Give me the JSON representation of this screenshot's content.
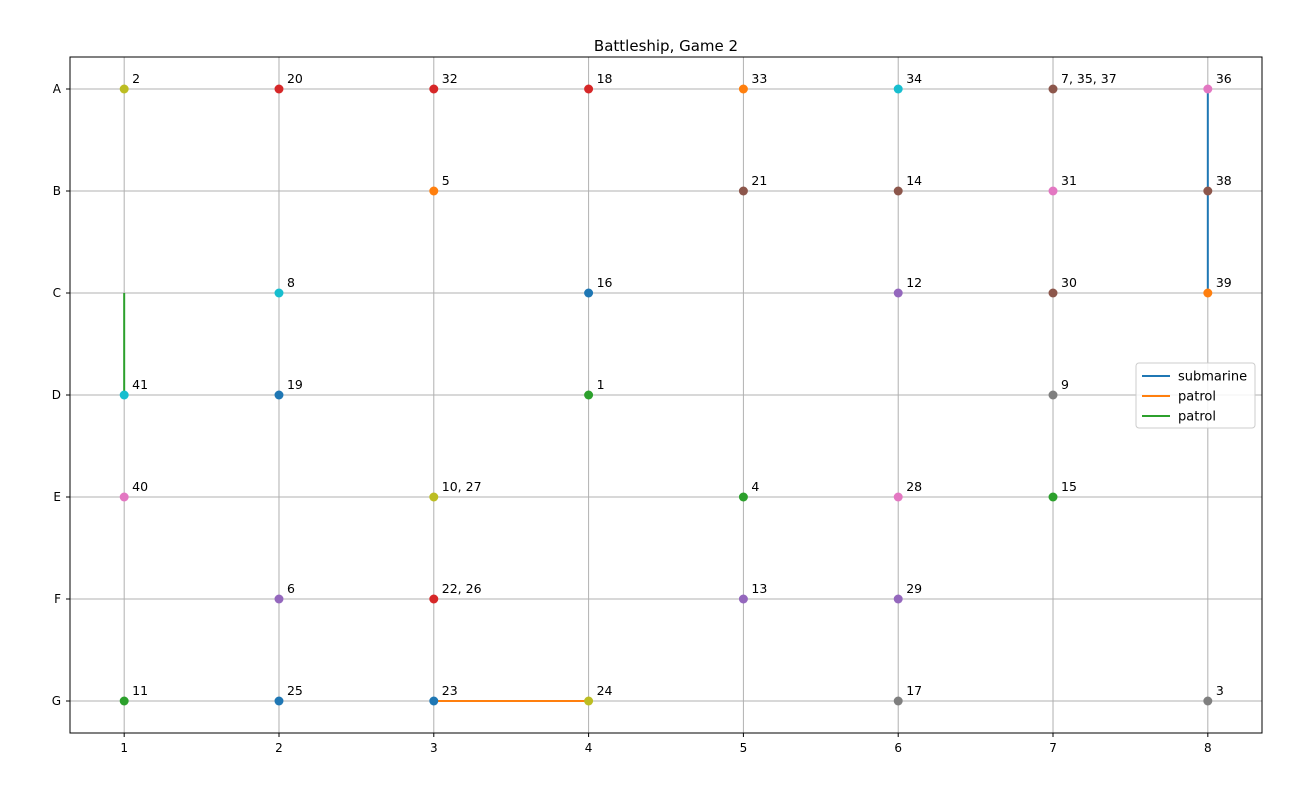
{
  "chart_data": {
    "type": "scatter",
    "title": "Battleship, Game 2",
    "xlabel": "",
    "ylabel": "",
    "x_ticks": [
      "1",
      "2",
      "3",
      "4",
      "5",
      "6",
      "7",
      "8"
    ],
    "y_ticks": [
      "A",
      "B",
      "C",
      "D",
      "E",
      "F",
      "G"
    ],
    "xlim": [
      0.65,
      8.35
    ],
    "ylim_rows": [
      "A",
      "G"
    ],
    "grid": true,
    "legend_position": "center-right",
    "colors": {
      "blue": "#1f77b4",
      "orange": "#ff7f0e",
      "green": "#2ca02c",
      "red": "#d62728",
      "purple": "#9467bd",
      "brown": "#8c564b",
      "pink": "#e377c2",
      "gray": "#7f7f7f",
      "olive": "#bcbd22",
      "cyan": "#17becf"
    },
    "points": [
      {
        "label": "2",
        "x": 1,
        "y": "A",
        "color": "olive"
      },
      {
        "label": "20",
        "x": 2,
        "y": "A",
        "color": "red"
      },
      {
        "label": "32",
        "x": 3,
        "y": "A",
        "color": "red"
      },
      {
        "label": "18",
        "x": 4,
        "y": "A",
        "color": "red"
      },
      {
        "label": "33",
        "x": 5,
        "y": "A",
        "color": "orange"
      },
      {
        "label": "34",
        "x": 6,
        "y": "A",
        "color": "cyan"
      },
      {
        "label": "7, 35, 37",
        "x": 7,
        "y": "A",
        "color": "brown"
      },
      {
        "label": "36",
        "x": 8,
        "y": "A",
        "color": "pink"
      },
      {
        "label": "5",
        "x": 3,
        "y": "B",
        "color": "orange"
      },
      {
        "label": "21",
        "x": 5,
        "y": "B",
        "color": "brown"
      },
      {
        "label": "14",
        "x": 6,
        "y": "B",
        "color": "brown"
      },
      {
        "label": "31",
        "x": 7,
        "y": "B",
        "color": "pink"
      },
      {
        "label": "38",
        "x": 8,
        "y": "B",
        "color": "brown"
      },
      {
        "label": "8",
        "x": 2,
        "y": "C",
        "color": "cyan"
      },
      {
        "label": "16",
        "x": 4,
        "y": "C",
        "color": "blue"
      },
      {
        "label": "12",
        "x": 6,
        "y": "C",
        "color": "purple"
      },
      {
        "label": "30",
        "x": 7,
        "y": "C",
        "color": "brown"
      },
      {
        "label": "39",
        "x": 8,
        "y": "C",
        "color": "orange"
      },
      {
        "label": "41",
        "x": 1,
        "y": "D",
        "color": "cyan"
      },
      {
        "label": "19",
        "x": 2,
        "y": "D",
        "color": "blue"
      },
      {
        "label": "1",
        "x": 4,
        "y": "D",
        "color": "green"
      },
      {
        "label": "9",
        "x": 7,
        "y": "D",
        "color": "gray"
      },
      {
        "label": "40",
        "x": 1,
        "y": "E",
        "color": "pink"
      },
      {
        "label": "10, 27",
        "x": 3,
        "y": "E",
        "color": "olive"
      },
      {
        "label": "4",
        "x": 5,
        "y": "E",
        "color": "green"
      },
      {
        "label": "28",
        "x": 6,
        "y": "E",
        "color": "pink"
      },
      {
        "label": "15",
        "x": 7,
        "y": "E",
        "color": "green"
      },
      {
        "label": "6",
        "x": 2,
        "y": "F",
        "color": "purple"
      },
      {
        "label": "22, 26",
        "x": 3,
        "y": "F",
        "color": "red"
      },
      {
        "label": "13",
        "x": 5,
        "y": "F",
        "color": "purple"
      },
      {
        "label": "29",
        "x": 6,
        "y": "F",
        "color": "purple"
      },
      {
        "label": "11",
        "x": 1,
        "y": "G",
        "color": "green"
      },
      {
        "label": "25",
        "x": 2,
        "y": "G",
        "color": "blue"
      },
      {
        "label": "23",
        "x": 3,
        "y": "G",
        "color": "blue"
      },
      {
        "label": "24",
        "x": 4,
        "y": "G",
        "color": "olive"
      },
      {
        "label": "17",
        "x": 6,
        "y": "G",
        "color": "gray"
      },
      {
        "label": "3",
        "x": 8,
        "y": "G",
        "color": "gray"
      }
    ],
    "series": [
      {
        "name": "submarine",
        "color": "blue",
        "x": [
          8,
          8
        ],
        "y": [
          "A",
          "C"
        ]
      },
      {
        "name": "patrol",
        "color": "orange",
        "x": [
          3,
          4
        ],
        "y": [
          "G",
          "G"
        ]
      },
      {
        "name": "patrol",
        "color": "green",
        "x": [
          1,
          1
        ],
        "y": [
          "C",
          "D"
        ]
      }
    ]
  }
}
